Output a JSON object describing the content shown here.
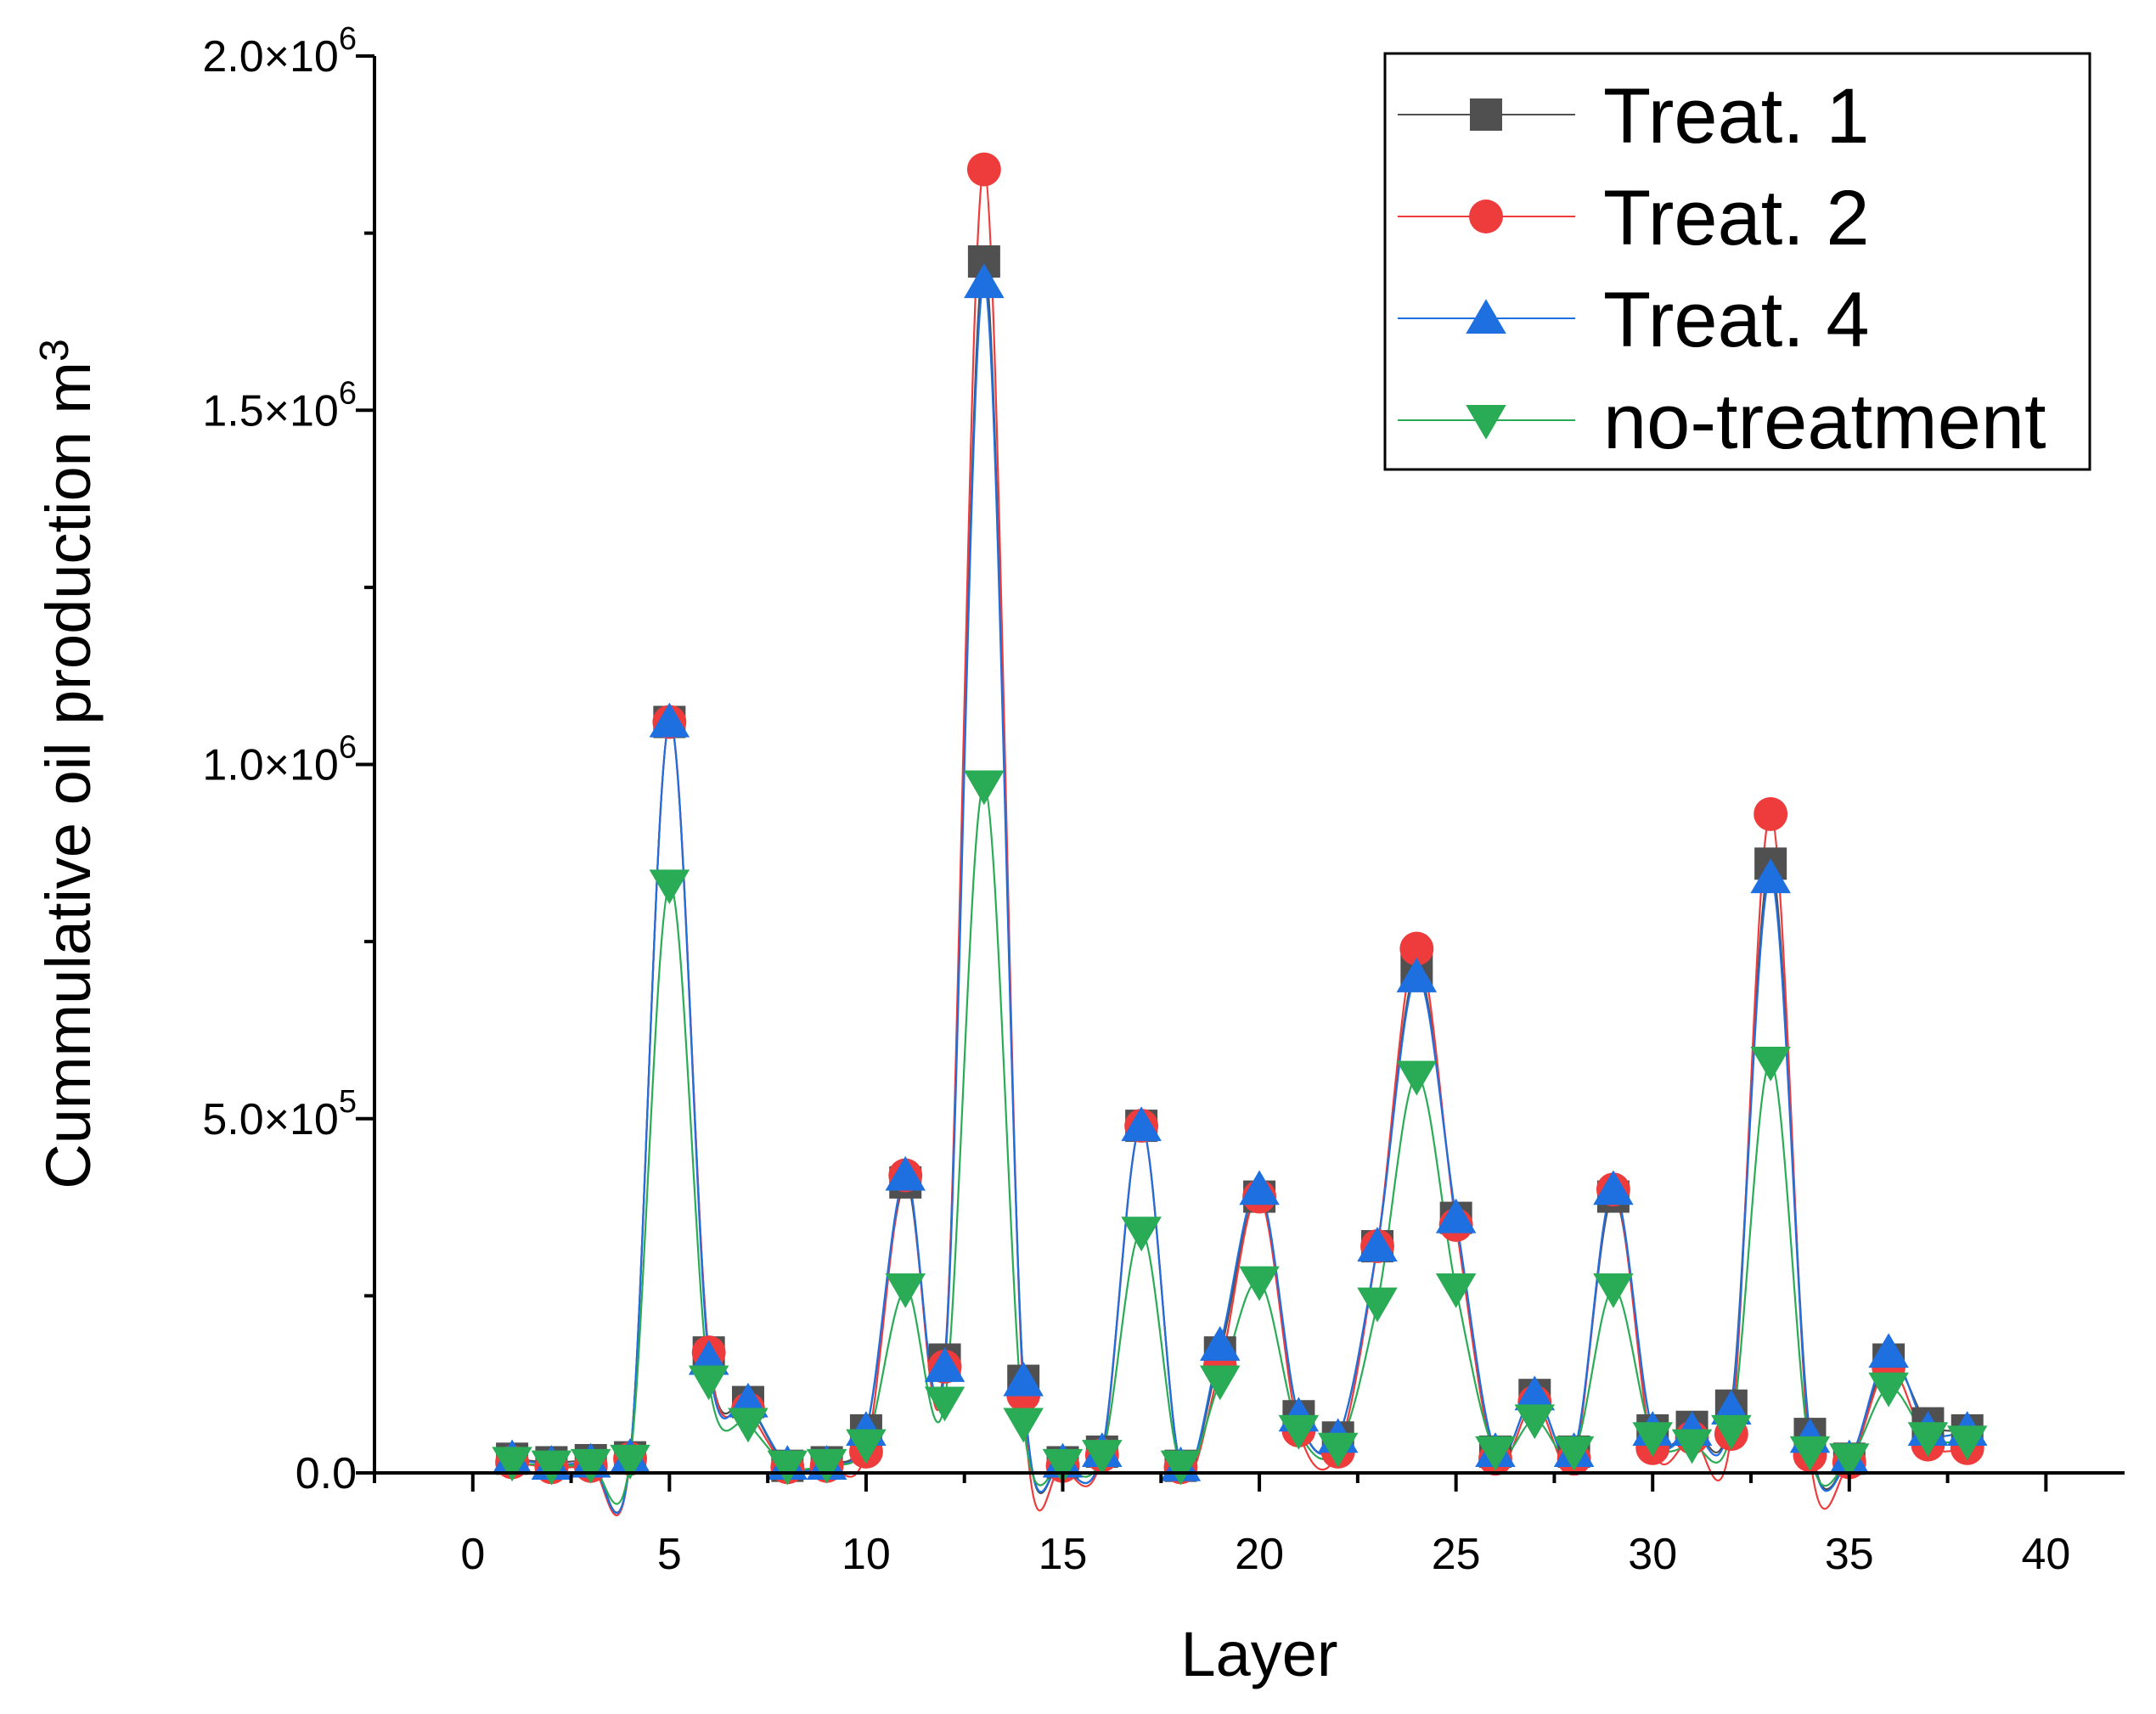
{
  "chart_data": {
    "type": "line",
    "title": "",
    "xlabel": "Layer",
    "ylabel": "Cummulative oil production m",
    "ylabel_superscript": "3",
    "xlim": [
      -2.5,
      42
    ],
    "ylim": [
      0,
      2000000
    ],
    "x_ticks": [
      0,
      5,
      10,
      15,
      20,
      25,
      30,
      35,
      40
    ],
    "y_ticks": [
      {
        "value": 0,
        "label": "0.0"
      },
      {
        "value": 500000,
        "label": "5.0×10",
        "exp": "5"
      },
      {
        "value": 1000000,
        "label": "1.0×10",
        "exp": "6"
      },
      {
        "value": 1500000,
        "label": "1.5×10",
        "exp": "6"
      },
      {
        "value": 2000000,
        "label": "2.0×10",
        "exp": "6"
      }
    ],
    "legend_position": "top-right",
    "x": [
      1,
      2,
      3,
      4,
      5,
      6,
      7,
      8,
      9,
      10,
      11,
      12,
      13,
      14,
      15,
      16,
      17,
      18,
      19,
      20,
      21,
      22,
      23,
      24,
      25,
      26,
      27,
      28,
      29,
      30,
      31,
      32,
      33,
      34,
      35,
      36,
      37,
      38
    ],
    "series": [
      {
        "name": "Treat. 1",
        "color": "#505050",
        "marker": "square",
        "values": [
          20000,
          15000,
          18000,
          22000,
          1060000,
          170000,
          100000,
          10000,
          15000,
          60000,
          410000,
          160000,
          1710000,
          130000,
          15000,
          30000,
          490000,
          10000,
          170000,
          390000,
          80000,
          50000,
          320000,
          710000,
          360000,
          30000,
          110000,
          30000,
          390000,
          60000,
          65000,
          95000,
          860000,
          55000,
          20000,
          160000,
          70000,
          60000
        ]
      },
      {
        "name": "Treat. 2",
        "color": "#ee3b3b",
        "marker": "circle",
        "values": [
          15000,
          8000,
          10000,
          20000,
          1060000,
          170000,
          90000,
          8000,
          10000,
          30000,
          420000,
          150000,
          1840000,
          110000,
          10000,
          25000,
          490000,
          8000,
          150000,
          390000,
          60000,
          30000,
          320000,
          740000,
          350000,
          20000,
          100000,
          20000,
          400000,
          35000,
          50000,
          55000,
          930000,
          25000,
          15000,
          150000,
          40000,
          35000
        ]
      },
      {
        "name": "Treat. 4",
        "color": "#1e6fe0",
        "marker": "triangle-up",
        "values": [
          20000,
          12000,
          15000,
          22000,
          1060000,
          160000,
          100000,
          12000,
          12000,
          60000,
          420000,
          150000,
          1680000,
          130000,
          15000,
          30000,
          490000,
          10000,
          180000,
          400000,
          80000,
          50000,
          320000,
          700000,
          360000,
          30000,
          110000,
          30000,
          400000,
          60000,
          60000,
          90000,
          840000,
          50000,
          20000,
          170000,
          60000,
          60000
        ]
      },
      {
        "name": "no-treatment",
        "color": "#2aab55",
        "marker": "triangle-down",
        "values": [
          15000,
          10000,
          12000,
          18000,
          830000,
          130000,
          70000,
          10000,
          12000,
          40000,
          260000,
          100000,
          970000,
          70000,
          12000,
          25000,
          340000,
          10000,
          130000,
          270000,
          60000,
          35000,
          240000,
          560000,
          260000,
          30000,
          75000,
          30000,
          260000,
          50000,
          40000,
          60000,
          580000,
          30000,
          20000,
          120000,
          50000,
          45000
        ]
      }
    ]
  }
}
